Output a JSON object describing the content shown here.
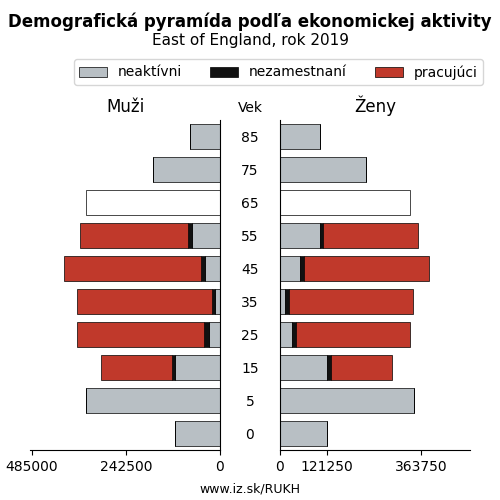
{
  "title": "Demografická pyramída podľa ekonomickej aktivity",
  "subtitle": "East of England, rok 2019",
  "annotations": [
    "www.iz.sk/RUKH"
  ],
  "chart_data": [
    {
      "type": "bar",
      "orientation": "horizontal",
      "stacked": true,
      "title": "Muži",
      "categories": [
        "0",
        "5",
        "15",
        "25",
        "35",
        "45",
        "55",
        "65",
        "75",
        "85"
      ],
      "series": [
        {
          "name": "neaktívni",
          "color": "#b8bfc4",
          "values": [
            115000,
            345000,
            115000,
            28000,
            12000,
            38000,
            72000,
            null,
            172000,
            77000
          ]
        },
        {
          "name": "nezamestnaní",
          "color": "#111111",
          "values": [
            0,
            0,
            9000,
            13000,
            9000,
            12000,
            10000,
            null,
            0,
            0
          ]
        },
        {
          "name": "pracujúci",
          "color": "#c0392b",
          "values": [
            0,
            0,
            182000,
            328000,
            348000,
            352000,
            278000,
            null,
            0,
            0
          ]
        },
        {
          "color": "white",
          "values": [
            null,
            null,
            null,
            null,
            null,
            null,
            null,
            345000,
            null,
            null
          ]
        }
      ],
      "xlim": [
        490000,
        0
      ],
      "xticks": [
        485000,
        242500,
        0
      ],
      "tick_labels": "x"
    },
    {
      "type": "bar",
      "orientation": "horizontal",
      "stacked": true,
      "title": "Ženy",
      "ylabel": "Vek",
      "categories": [
        "0",
        "5",
        "15",
        "25",
        "35",
        "45",
        "55",
        "65",
        "75",
        "85"
      ],
      "series": [
        {
          "name": "neaktívni",
          "color": "#b8bfc4",
          "values": [
            120000,
            345000,
            122000,
            30000,
            14000,
            52000,
            102000,
            null,
            222000,
            102000
          ]
        },
        {
          "name": "nezamestnaní",
          "color": "#111111",
          "values": [
            0,
            0,
            9000,
            11000,
            8000,
            9000,
            9000,
            null,
            0,
            0
          ]
        },
        {
          "name": "pracujúci",
          "color": "#c0392b",
          "values": [
            0,
            0,
            158000,
            295000,
            322000,
            322000,
            245000,
            null,
            0,
            0
          ]
        },
        {
          "color": "white",
          "values": [
            null,
            null,
            null,
            null,
            null,
            null,
            null,
            335000,
            null,
            null
          ]
        }
      ],
      "xlim": [
        0,
        490000
      ],
      "xticks": [
        0,
        121250,
        363750
      ],
      "legend": "upper right"
    }
  ]
}
